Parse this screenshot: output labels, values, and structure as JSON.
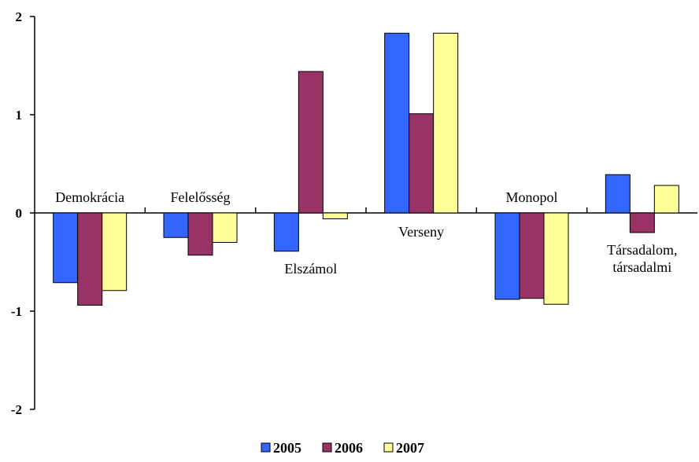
{
  "chart_data": {
    "type": "bar",
    "title": "",
    "xlabel": "",
    "ylabel": "",
    "ylim": [
      -2,
      2
    ],
    "yticks": [
      2,
      1,
      0,
      -1,
      -2
    ],
    "ytick_labels": [
      "2",
      "1",
      "0",
      "-1",
      "-2"
    ],
    "grid": false,
    "legend_position": "bottom",
    "categories": [
      [
        "Demokrácia"
      ],
      [
        "Felelősség"
      ],
      [
        "Elszámol"
      ],
      [
        "Verseny"
      ],
      [
        "Monopol"
      ],
      [
        "Társadalom,",
        "társadalmi"
      ]
    ],
    "category_label_placement": [
      "above",
      "above",
      "below",
      "below",
      "above",
      "below"
    ],
    "series": [
      {
        "name": "2005",
        "color": "#3366ff",
        "values": [
          -0.71,
          -0.25,
          -0.39,
          1.83,
          -0.88,
          0.39
        ]
      },
      {
        "name": "2006",
        "color": "#993366",
        "values": [
          -0.94,
          -0.43,
          1.44,
          1.01,
          -0.87,
          -0.2
        ]
      },
      {
        "name": "2007",
        "color": "#ffff99",
        "values": [
          -0.79,
          -0.3,
          -0.06,
          1.83,
          -0.93,
          0.28
        ]
      }
    ]
  }
}
